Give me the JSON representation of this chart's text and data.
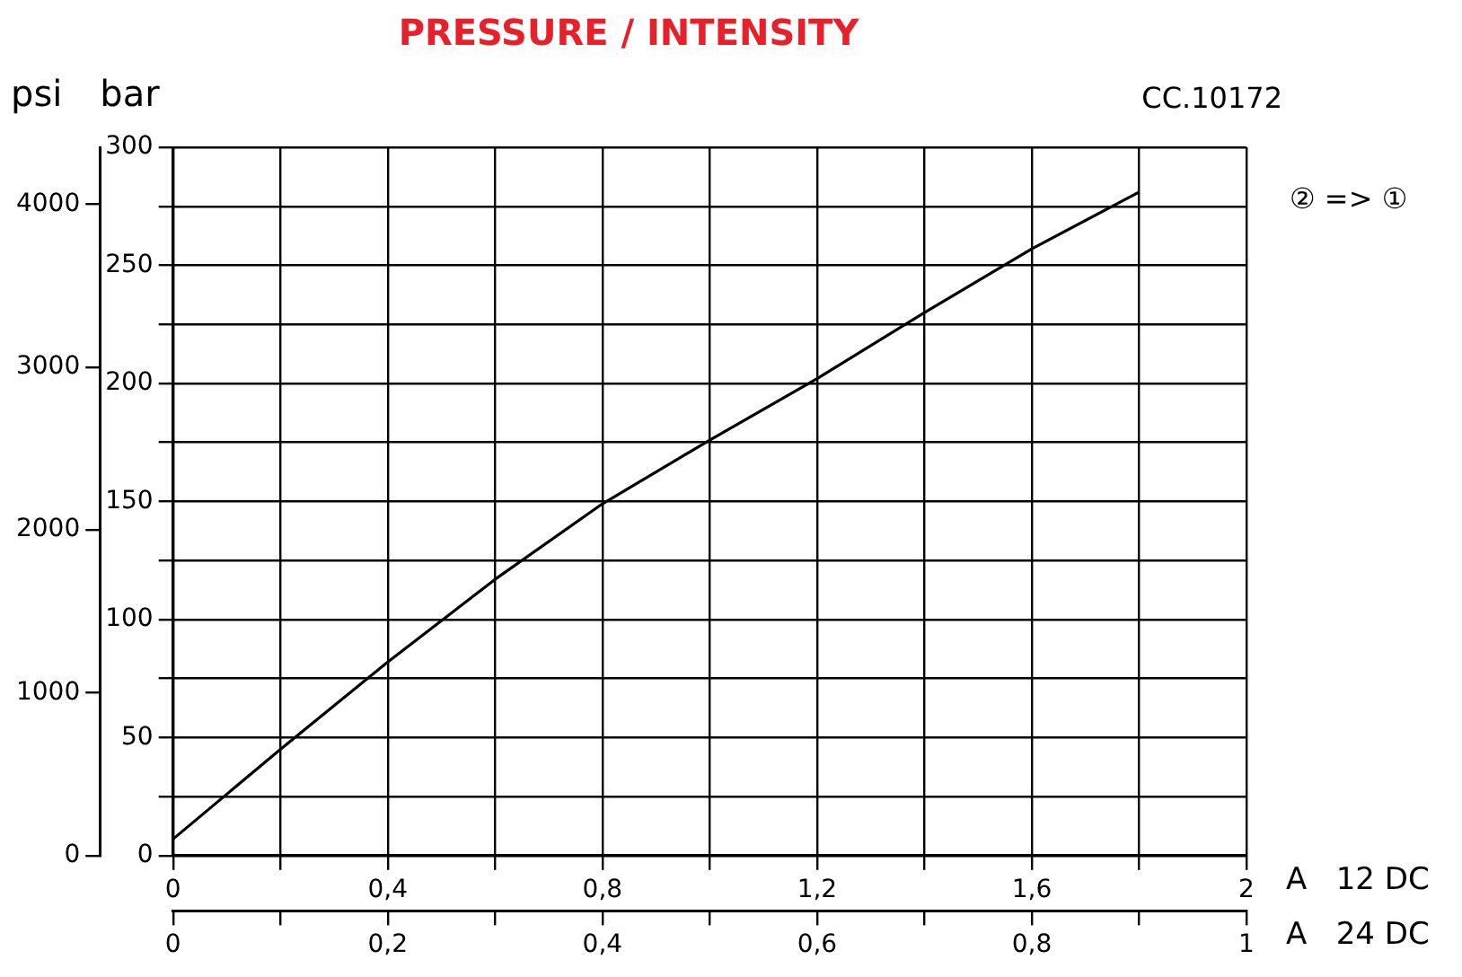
{
  "chart_data": {
    "type": "line",
    "title": "PRESSURE / INTENSITY",
    "ylabel": "bar",
    "y2label": "psi",
    "xlabel": "A   12 DC",
    "x2label": "A   24 DC",
    "annotations": [
      "CC.10172",
      "② => ①"
    ],
    "x": [
      0,
      0.2,
      0.4,
      0.6,
      0.8,
      1.0,
      1.2,
      1.4,
      1.6,
      1.8
    ],
    "series": [
      {
        "color": "#000000",
        "values": [
          7,
          45,
          82,
          117,
          149,
          176,
          202,
          230,
          257,
          281
        ]
      }
    ],
    "xlim": [
      0,
      2
    ],
    "xticks": [
      0,
      {
        "value": 0.2,
        "label": null
      },
      {
        "value": 0.4,
        "label": "0,4"
      },
      {
        "value": 0.6,
        "label": null
      },
      {
        "value": 0.8,
        "label": "0,8"
      },
      {
        "value": 1.0,
        "label": null
      },
      {
        "value": 1.2,
        "label": "1,2"
      },
      {
        "value": 1.4,
        "label": null
      },
      {
        "value": 1.6,
        "label": "1,6"
      },
      {
        "value": 1.8,
        "label": null
      },
      2
    ],
    "x2lim": [
      0,
      1
    ],
    "x2ticks": [
      0,
      {
        "value": 0.1,
        "label": null
      },
      {
        "value": 0.2,
        "label": "0,2"
      },
      {
        "value": 0.3,
        "label": null
      },
      {
        "value": 0.4,
        "label": "0,4"
      },
      {
        "value": 0.5,
        "label": null
      },
      {
        "value": 0.6,
        "label": "0,6"
      },
      {
        "value": 0.7,
        "label": null
      },
      {
        "value": 0.8,
        "label": "0,8"
      },
      {
        "value": 0.9,
        "label": null
      },
      1
    ],
    "ylim": [
      0,
      300
    ],
    "yticks": [
      0,
      {
        "value": 25,
        "label": null
      },
      50,
      {
        "value": 75,
        "label": null
      },
      100,
      {
        "value": 125,
        "label": null
      },
      150,
      {
        "value": 175,
        "label": null
      },
      200,
      {
        "value": 225,
        "label": null
      },
      250,
      {
        "value": 275,
        "label": null
      },
      300
    ],
    "y2lim": [
      0,
      4351
    ],
    "y2ticks": [
      0,
      1000,
      2000,
      3000,
      4000
    ],
    "grid": true,
    "legend": false,
    "marker": "none",
    "line_style": "solid"
  }
}
